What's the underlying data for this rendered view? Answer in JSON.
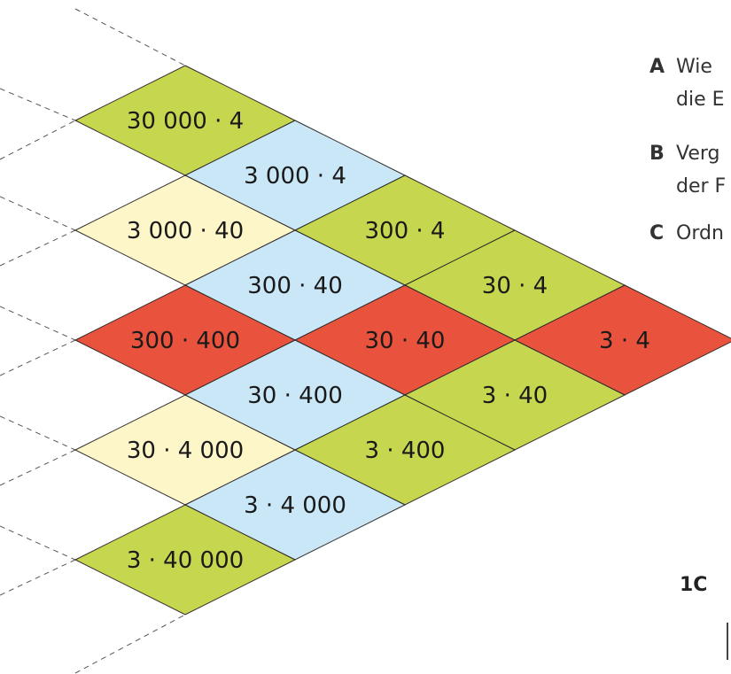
{
  "colors": {
    "green": "#c6d64f",
    "blue": "#c9e7f7",
    "yellow": "#fdf6c8",
    "red": "#e9533d",
    "outline": "#2a2a2a"
  },
  "cells": [
    {
      "label": "30 000 · 4",
      "color": "green"
    },
    {
      "label": "3 000 · 4",
      "color": "blue"
    },
    {
      "label": "3 000 · 40",
      "color": "yellow"
    },
    {
      "label": "300 · 4",
      "color": "green"
    },
    {
      "label": "300 · 40",
      "color": "blue"
    },
    {
      "label": "30 · 4",
      "color": "green"
    },
    {
      "label": "300 · 400",
      "color": "red"
    },
    {
      "label": "30 · 40",
      "color": "red"
    },
    {
      "label": "3 · 4",
      "color": "red"
    },
    {
      "label": "30 · 400",
      "color": "blue"
    },
    {
      "label": "3 · 40",
      "color": "green"
    },
    {
      "label": "30 · 4 000",
      "color": "yellow"
    },
    {
      "label": "3 · 400",
      "color": "green"
    },
    {
      "label": "3 · 4 000",
      "color": "blue"
    },
    {
      "label": "3 · 40 000",
      "color": "green"
    }
  ],
  "tasks": [
    {
      "letter": "A",
      "line1": "Wie",
      "line2": "die E"
    },
    {
      "letter": "B",
      "line1": "Verg",
      "line2": "der F"
    },
    {
      "letter": "C",
      "line1": "Ordn",
      "line2": ""
    }
  ],
  "page_number": "1C"
}
